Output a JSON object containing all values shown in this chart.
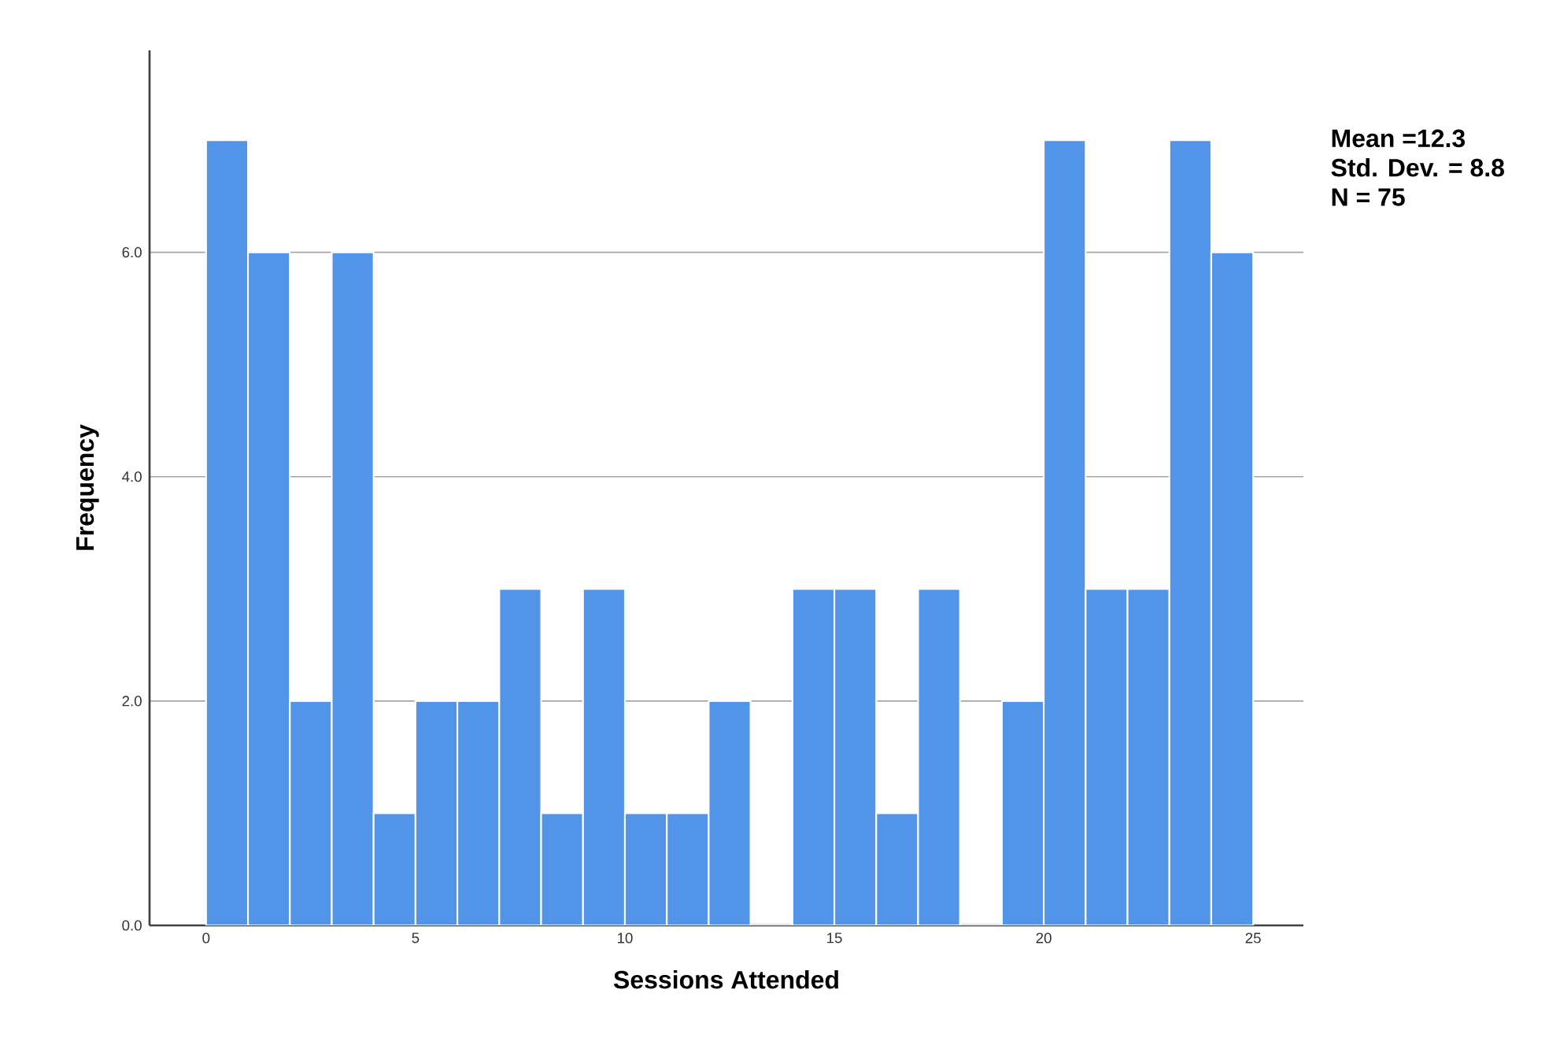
{
  "chart_data": {
    "type": "histogram",
    "bins": [
      0,
      1,
      2,
      3,
      4,
      5,
      6,
      7,
      8,
      9,
      10,
      11,
      12,
      13,
      14,
      15,
      16,
      17,
      18,
      19,
      20,
      21,
      22,
      23,
      24,
      25
    ],
    "values": [
      7,
      6,
      2,
      6,
      1,
      2,
      2,
      3,
      1,
      3,
      1,
      1,
      2,
      0,
      3,
      3,
      1,
      3,
      0,
      2,
      7,
      3,
      3,
      7,
      6
    ],
    "color": "#5194e8",
    "xlabel": "Sessions Attended",
    "ylabel": "Frequency",
    "xlim": [
      -1.35,
      26.2
    ],
    "ylim": [
      0,
      7.8
    ],
    "xticks": [
      0,
      5,
      10,
      15,
      20,
      25
    ],
    "yticks": [
      {
        "value": 0,
        "label": "0.0"
      },
      {
        "value": 2,
        "label": "2.0"
      },
      {
        "value": 4,
        "label": "4.0"
      },
      {
        "value": 6,
        "label": "6.0"
      }
    ],
    "grid": "y",
    "annotations": [
      "Mean =12.3",
      "Std. Dev. = 8.8",
      "N = 75"
    ]
  }
}
